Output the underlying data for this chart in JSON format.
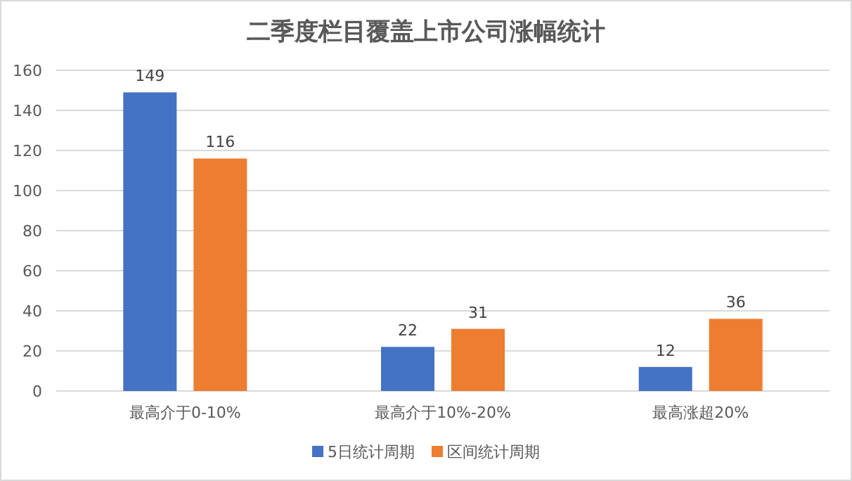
{
  "chart_data": {
    "type": "bar",
    "title": "二季度栏目覆盖上市公司涨幅统计",
    "categories": [
      "最高介于0-10%",
      "最高介于10%-20%",
      "最高涨超20%"
    ],
    "series": [
      {
        "name": "5日统计周期",
        "color": "#4472c4",
        "values": [
          149,
          22,
          12
        ]
      },
      {
        "name": "区间统计周期",
        "color": "#ed7d31",
        "values": [
          116,
          31,
          36
        ]
      }
    ],
    "ylim": [
      0,
      160
    ],
    "yticks": [
      0,
      20,
      40,
      60,
      80,
      100,
      120,
      140,
      160
    ],
    "grid": "y",
    "legend": "bottom",
    "data_labels": true
  }
}
